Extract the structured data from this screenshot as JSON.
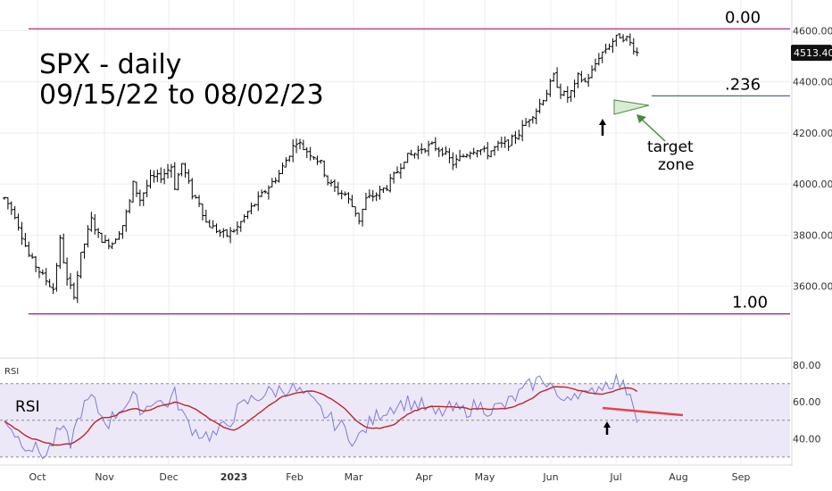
{
  "chart_data": {
    "type": "ohlc",
    "title": "SPX - daily",
    "subtitle": "09/15/22 to 08/02/23",
    "last_price": "4513.40",
    "price_axis": {
      "ylim": [
        3330,
        4650
      ],
      "ticks": [
        {
          "v": 3600,
          "label": "3600.00"
        },
        {
          "v": 3800,
          "label": "3800.00"
        },
        {
          "v": 4000,
          "label": "4000.00"
        },
        {
          "v": 4200,
          "label": "4200.00"
        },
        {
          "v": 4400,
          "label": "4400.00"
        },
        {
          "v": 4600,
          "label": "4600.00"
        }
      ]
    },
    "time_axis": {
      "labels": [
        {
          "label": "Oct",
          "bold": false
        },
        {
          "label": "Nov",
          "bold": false
        },
        {
          "label": "Dec",
          "bold": false
        },
        {
          "label": "2023",
          "bold": true
        },
        {
          "label": "Feb",
          "bold": false
        },
        {
          "label": "Mar",
          "bold": false
        },
        {
          "label": "Apr",
          "bold": false
        },
        {
          "label": "May",
          "bold": false
        },
        {
          "label": "Jun",
          "bold": false
        },
        {
          "label": "Jul",
          "bold": false
        },
        {
          "label": "Aug",
          "bold": false
        },
        {
          "label": "Sep",
          "bold": false
        }
      ]
    },
    "price_path": [
      [
        0,
        3945
      ],
      [
        3,
        3880
      ],
      [
        7,
        3720
      ],
      [
        11,
        3640
      ],
      [
        14,
        3590
      ],
      [
        16,
        3780
      ],
      [
        18,
        3620
      ],
      [
        20,
        3570
      ],
      [
        22,
        3720
      ],
      [
        25,
        3860
      ],
      [
        27,
        3800
      ],
      [
        29,
        3770
      ],
      [
        31,
        3770
      ],
      [
        34,
        3840
      ],
      [
        36,
        3930
      ],
      [
        37,
        4000
      ],
      [
        39,
        3940
      ],
      [
        42,
        4020
      ],
      [
        45,
        4030
      ],
      [
        48,
        4070
      ],
      [
        49,
        3990
      ],
      [
        51,
        4080
      ],
      [
        54,
        3960
      ],
      [
        56,
        3930
      ],
      [
        58,
        3850
      ],
      [
        60,
        3830
      ],
      [
        62,
        3810
      ],
      [
        64,
        3800
      ],
      [
        67,
        3830
      ],
      [
        70,
        3890
      ],
      [
        73,
        3940
      ],
      [
        76,
        3990
      ],
      [
        79,
        4040
      ],
      [
        82,
        4120
      ],
      [
        84,
        4170
      ],
      [
        86,
        4140
      ],
      [
        89,
        4110
      ],
      [
        91,
        4080
      ],
      [
        93,
        4010
      ],
      [
        96,
        3970
      ],
      [
        98,
        3960
      ],
      [
        101,
        3890
      ],
      [
        102,
        3860
      ],
      [
        104,
        3940
      ],
      [
        107,
        3960
      ],
      [
        110,
        3990
      ],
      [
        113,
        4050
      ],
      [
        115,
        4100
      ],
      [
        118,
        4120
      ],
      [
        120,
        4140
      ],
      [
        123,
        4150
      ],
      [
        126,
        4130
      ],
      [
        129,
        4080
      ],
      [
        131,
        4100
      ],
      [
        134,
        4130
      ],
      [
        136,
        4140
      ],
      [
        139,
        4120
      ],
      [
        142,
        4150
      ],
      [
        145,
        4160
      ],
      [
        148,
        4200
      ],
      [
        151,
        4260
      ],
      [
        153,
        4290
      ],
      [
        156,
        4360
      ],
      [
        158,
        4420
      ],
      [
        160,
        4360
      ],
      [
        162,
        4340
      ],
      [
        164,
        4380
      ],
      [
        165,
        4420
      ],
      [
        167,
        4400
      ],
      [
        169,
        4440
      ],
      [
        171,
        4500
      ],
      [
        173,
        4530
      ],
      [
        175,
        4560
      ],
      [
        177,
        4580
      ],
      [
        179,
        4570
      ],
      [
        180,
        4550
      ],
      [
        182,
        4513
      ]
    ],
    "rsi_axis": {
      "ylim": [
        27,
        83
      ],
      "ticks": [
        {
          "v": 40,
          "label": "40.00"
        },
        {
          "v": 60,
          "label": "60.00"
        },
        {
          "v": 80,
          "label": "80.00"
        }
      ],
      "upper_band": 70,
      "middle_band": 50,
      "lower_band": 30
    },
    "rsi_path": [
      [
        0,
        52
      ],
      [
        4,
        40
      ],
      [
        8,
        35
      ],
      [
        12,
        31
      ],
      [
        16,
        45
      ],
      [
        19,
        38
      ],
      [
        22,
        55
      ],
      [
        25,
        62
      ],
      [
        28,
        52
      ],
      [
        30,
        49
      ],
      [
        34,
        58
      ],
      [
        37,
        62
      ],
      [
        40,
        55
      ],
      [
        43,
        62
      ],
      [
        46,
        58
      ],
      [
        49,
        64
      ],
      [
        52,
        50
      ],
      [
        55,
        44
      ],
      [
        58,
        42
      ],
      [
        61,
        42
      ],
      [
        64,
        48
      ],
      [
        67,
        55
      ],
      [
        70,
        60
      ],
      [
        74,
        64
      ],
      [
        78,
        66
      ],
      [
        82,
        68
      ],
      [
        86,
        64
      ],
      [
        90,
        57
      ],
      [
        94,
        50
      ],
      [
        98,
        45
      ],
      [
        101,
        38
      ],
      [
        104,
        46
      ],
      [
        108,
        54
      ],
      [
        112,
        58
      ],
      [
        116,
        60
      ],
      [
        120,
        58
      ],
      [
        124,
        53
      ],
      [
        128,
        56
      ],
      [
        132,
        55
      ],
      [
        136,
        58
      ],
      [
        140,
        56
      ],
      [
        144,
        58
      ],
      [
        148,
        64
      ],
      [
        152,
        70
      ],
      [
        155,
        73
      ],
      [
        158,
        68
      ],
      [
        160,
        58
      ],
      [
        162,
        64
      ],
      [
        165,
        66
      ],
      [
        168,
        62
      ],
      [
        170,
        68
      ],
      [
        173,
        70
      ],
      [
        176,
        72
      ],
      [
        178,
        68
      ],
      [
        180,
        66
      ],
      [
        182,
        53
      ]
    ],
    "rsi_label": "RSI",
    "rsi_panel_label": "RSI",
    "fib_levels": [
      {
        "label": "0.00",
        "price": 4607
      },
      {
        "label": ".236",
        "price": 4345
      },
      {
        "label": "1.00",
        "price": 3492
      }
    ],
    "annotations": [
      {
        "label": "target",
        "line2": "zone"
      }
    ],
    "colors": {
      "price_bars": "#000000",
      "fib_line": "#a0147a",
      "rsi_line": "#7b7bd8",
      "rsi_ma": "#c0242a",
      "rsi_band_fill": "#ede8f7",
      "divergence_line": "#e8434a",
      "target_fill": "#d9ecd4",
      "target_stroke": "#4a8a3f",
      "target_line": "#4e6a8a",
      "grid": "#eeeeee"
    }
  }
}
